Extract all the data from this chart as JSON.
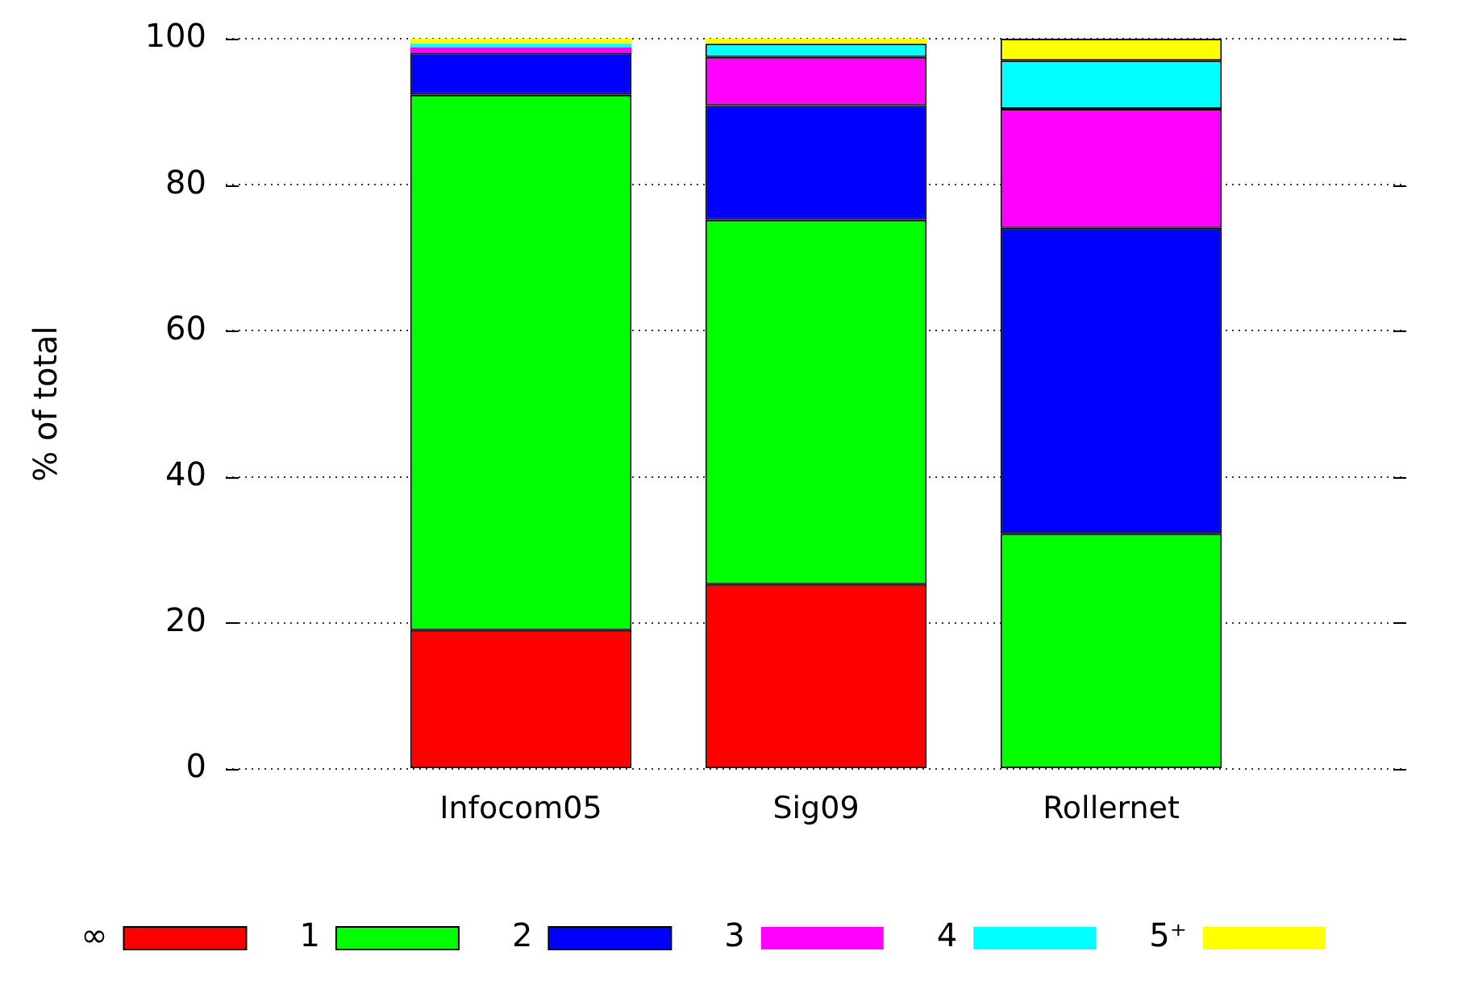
{
  "chart_data": {
    "type": "bar",
    "ylabel": "% of total",
    "categories": [
      "Infocom05",
      "Sig09",
      "Rollernet"
    ],
    "series": [
      {
        "name": "∞",
        "color": "#ff0000",
        "values": [
          19.0,
          25.3,
          0
        ]
      },
      {
        "name": "1",
        "color": "#00ff00",
        "values": [
          73.3,
          49.9,
          32.2
        ]
      },
      {
        "name": "2",
        "color": "#0000ff",
        "values": [
          5.8,
          15.7,
          41.9
        ]
      },
      {
        "name": "3",
        "color": "#ff00ff",
        "values": [
          0.7,
          6.6,
          16.3
        ]
      },
      {
        "name": "4",
        "color": "#00ffff",
        "values": [
          0.5,
          1.8,
          6.6
        ]
      },
      {
        "name": "5⁺",
        "color": "#ffff00",
        "values": [
          0.7,
          0.7,
          3.0
        ]
      }
    ],
    "stacked": true,
    "ylim": [
      0,
      100
    ],
    "yticks": [
      0,
      20,
      40,
      60,
      80,
      100
    ],
    "grid": "y",
    "legend": "bottom"
  }
}
